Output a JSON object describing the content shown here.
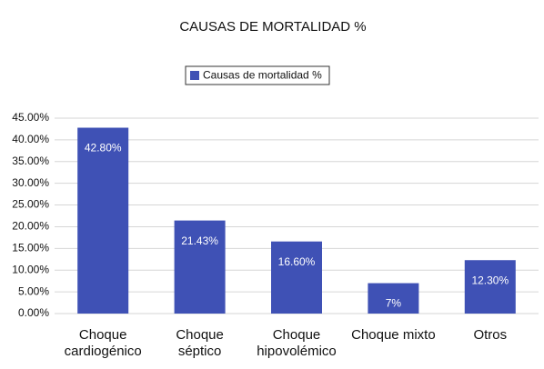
{
  "chart_data": {
    "type": "bar",
    "title": "CAUSAS DE MORTALIDAD %",
    "legend": "Causas de mortalidad %",
    "categories": [
      "Choque cardiogénico",
      "Choque séptico",
      "Choque hipovolémico",
      "Choque mixto",
      "Otros"
    ],
    "series": [
      {
        "name": "Causas de mortalidad %",
        "color": "#3f51b5",
        "values": [
          42.8,
          21.43,
          16.6,
          7,
          12.3
        ],
        "value_labels": [
          "42.80%",
          "21.43%",
          "16.60%",
          "7%",
          "12.30%"
        ]
      }
    ],
    "ylim": [
      0,
      45
    ],
    "yticks": [
      {
        "value": 0,
        "label": "0.00%"
      },
      {
        "value": 5,
        "label": "5.00%"
      },
      {
        "value": 10,
        "label": "10.00%"
      },
      {
        "value": 15,
        "label": "15.00%"
      },
      {
        "value": 20,
        "label": "20.00%"
      },
      {
        "value": 25,
        "label": "25.00%"
      },
      {
        "value": 30,
        "label": "30.00%"
      },
      {
        "value": 35,
        "label": "35.00%"
      },
      {
        "value": 40,
        "label": "40.00%"
      },
      {
        "value": 45,
        "label": "45.00%"
      }
    ],
    "grid": true
  }
}
